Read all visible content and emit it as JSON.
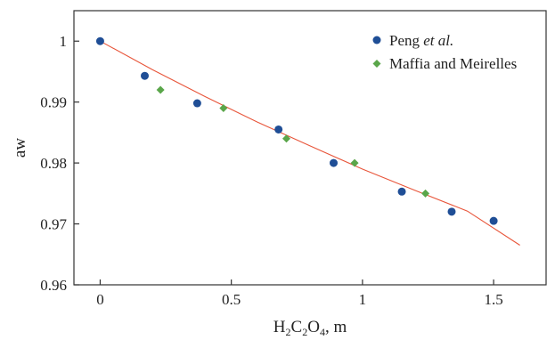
{
  "chart_data": {
    "type": "scatter",
    "xlabel": "H₂C₂O₄, m",
    "ylabel": "aw",
    "xlim": [
      -0.1,
      1.7
    ],
    "ylim": [
      0.96,
      1.005
    ],
    "xticks": [
      0,
      0.5,
      1,
      1.5
    ],
    "xtick_labels": [
      "0",
      "0.5",
      "1",
      "1.5"
    ],
    "yticks": [
      0.96,
      0.97,
      0.98,
      0.99,
      1.0
    ],
    "ytick_labels": [
      "0.96",
      "0.97",
      "0.98",
      "0.99",
      "1"
    ],
    "legend_position": "top-right",
    "series": [
      {
        "name": "Peng et al.",
        "marker": "circle",
        "color": "#1f4e96",
        "x": [
          0,
          0.17,
          0.37,
          0.68,
          0.89,
          1.15,
          1.34,
          1.5
        ],
        "y": [
          1.0,
          0.9943,
          0.9898,
          0.9855,
          0.98,
          0.9753,
          0.972,
          0.9705
        ]
      },
      {
        "name": "Maffia and Meirelles",
        "marker": "diamond",
        "color": "#5aa64a",
        "x": [
          0.23,
          0.47,
          0.71,
          0.97,
          1.24
        ],
        "y": [
          0.992,
          0.989,
          0.984,
          0.98,
          0.975
        ]
      }
    ],
    "fit_line": {
      "color": "#e8553a",
      "x": [
        0,
        0.2,
        0.4,
        0.6,
        0.8,
        1.0,
        1.2,
        1.4,
        1.6
      ],
      "y": [
        1.0,
        0.9953,
        0.9909,
        0.9867,
        0.9828,
        0.979,
        0.9755,
        0.9721,
        0.9665
      ]
    }
  }
}
